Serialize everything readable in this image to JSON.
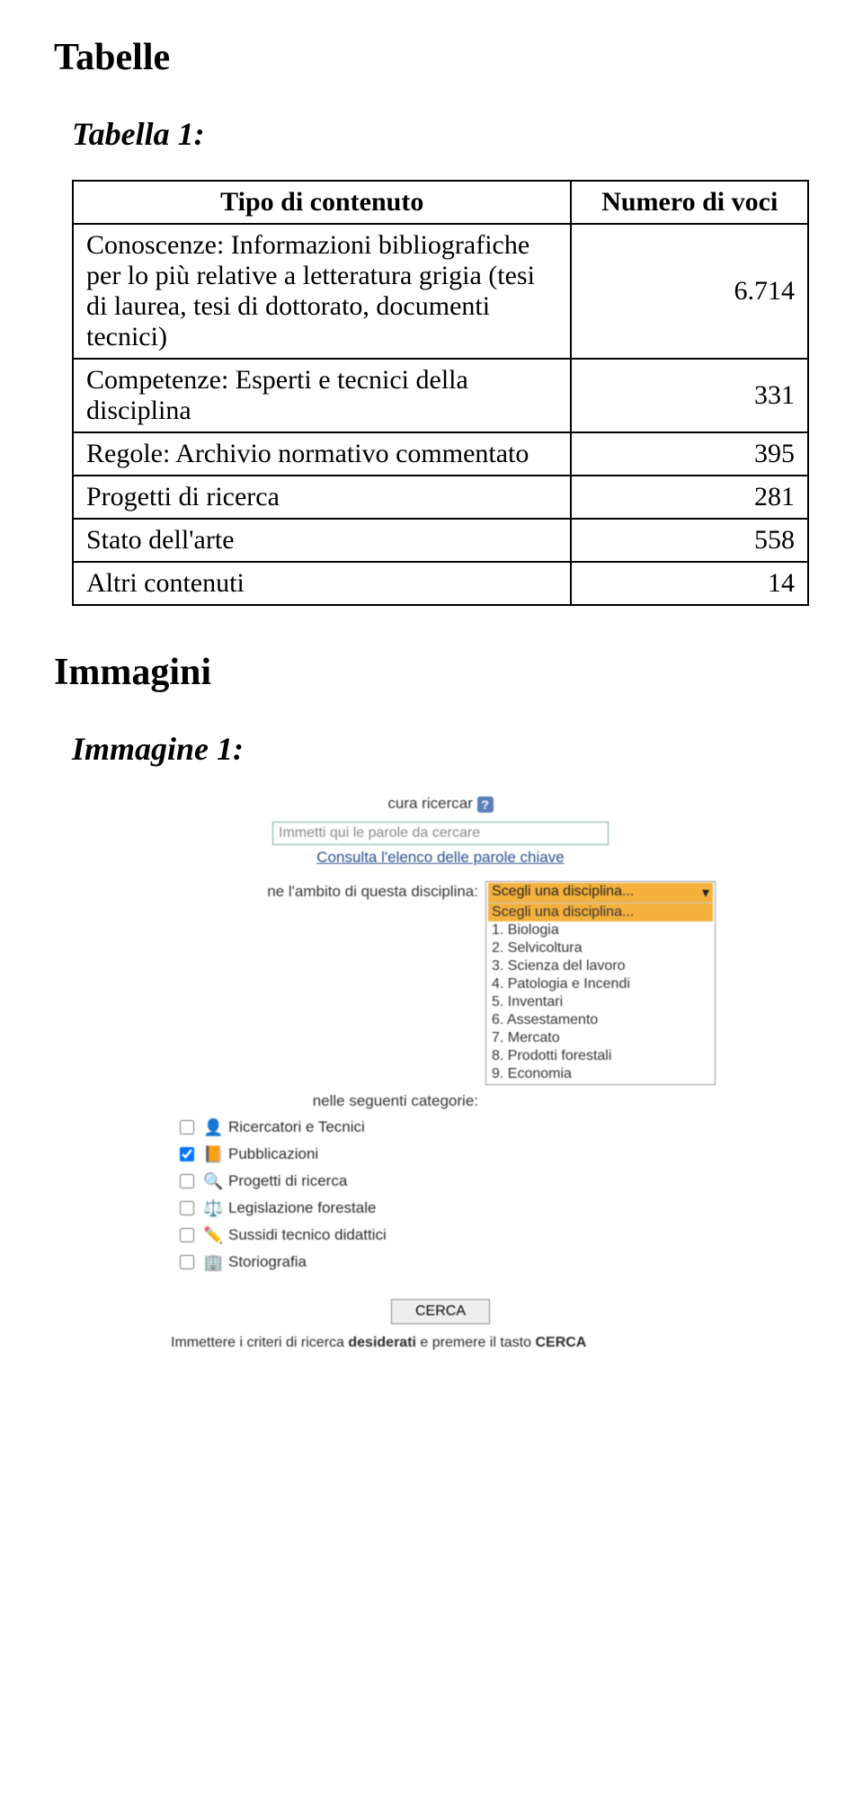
{
  "headings": {
    "tabelle": "Tabelle",
    "tabella1": "Tabella 1:",
    "immagini": "Immagini",
    "immagine1": "Immagine 1:"
  },
  "table": {
    "col1_header": "Tipo di contenuto",
    "col2_header": "Numero di voci",
    "rows": [
      {
        "label": "Conoscenze: Informazioni bibliografiche per lo più relative a letteratura grigia (tesi di laurea, tesi di dottorato, documenti tecnici)",
        "value": "6.714"
      },
      {
        "label": "Competenze: Esperti e tecnici della disciplina",
        "value": "331"
      },
      {
        "label": "Regole: Archivio normativo commentato",
        "value": "395"
      },
      {
        "label": "Progetti di ricerca",
        "value": "281"
      },
      {
        "label": "Stato dell'arte",
        "value": "558"
      },
      {
        "label": "Altri contenuti",
        "value": "14"
      }
    ]
  },
  "embedded": {
    "top_label": "cura ricercar",
    "help": "?",
    "search_placeholder": "Immetti qui le parole da cercare",
    "consult_link": "Consulta l'elenco delle parole chiave",
    "scope_label": "ne l'ambito di questa disciplina:",
    "cat_label": "nelle seguenti categorie:",
    "dropdown_selected": "Scegli una disciplina...",
    "dropdown_options": [
      "Scegli una disciplina...",
      "1. Biologia",
      "2. Selvicoltura",
      "3. Scienza del lavoro",
      "4. Patologia e Incendi",
      "5. Inventari",
      "6. Assestamento",
      "7. Mercato",
      "8. Prodotti forestali",
      "9. Economia"
    ],
    "categories": [
      {
        "icon": "👤",
        "label": "Ricercatori e Tecnici",
        "checked": false
      },
      {
        "icon": "📙",
        "label": "Pubblicazioni",
        "checked": true
      },
      {
        "icon": "🔍",
        "label": "Progetti di ricerca",
        "checked": false
      },
      {
        "icon": "⚖️",
        "label": "Legislazione forestale",
        "checked": false
      },
      {
        "icon": "✏️",
        "label": "Sussidi tecnico didattici",
        "checked": false
      },
      {
        "icon": "🏢",
        "label": "Storiografia",
        "checked": false
      }
    ],
    "button": "CERCA",
    "footer_pre": "Immettere i criteri di ricerca ",
    "footer_bold1": "desiderati",
    "footer_mid": " e premere il tasto ",
    "footer_bold2": "CERCA"
  }
}
